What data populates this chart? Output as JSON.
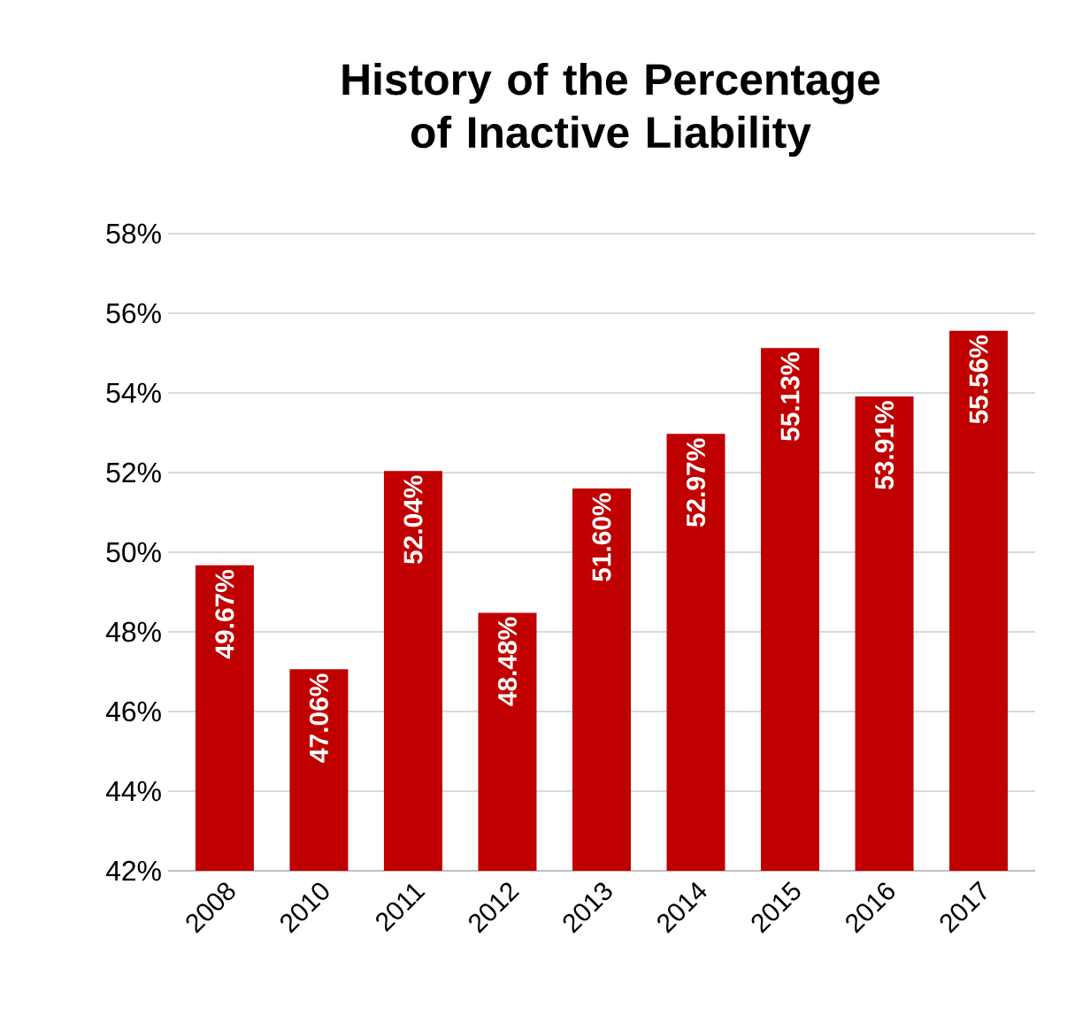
{
  "chart_data": {
    "type": "bar",
    "title": "History of the Percentage of Inactive Liability",
    "categories": [
      "2008",
      "2010",
      "2011",
      "2012",
      "2013",
      "2014",
      "2015",
      "2016",
      "2017"
    ],
    "values": [
      49.67,
      47.06,
      52.04,
      48.48,
      51.6,
      52.97,
      55.13,
      53.91,
      55.56
    ],
    "value_labels": [
      "49.67%",
      "47.06%",
      "52.04%",
      "48.48%",
      "51.60%",
      "52.97%",
      "55.13%",
      "53.91%",
      "55.56%"
    ],
    "color": "#c00000",
    "ylim": [
      42,
      58
    ],
    "yticks": [
      {
        "value": 42,
        "label": "42%"
      },
      {
        "value": 44,
        "label": "44%"
      },
      {
        "value": 46,
        "label": "46%"
      },
      {
        "value": 48,
        "label": "48%"
      },
      {
        "value": 50,
        "label": "50%"
      },
      {
        "value": 52,
        "label": "52%"
      },
      {
        "value": 54,
        "label": "54%"
      },
      {
        "value": 56,
        "label": "56%"
      },
      {
        "value": 58,
        "label": "58%"
      }
    ],
    "grid": "y"
  }
}
